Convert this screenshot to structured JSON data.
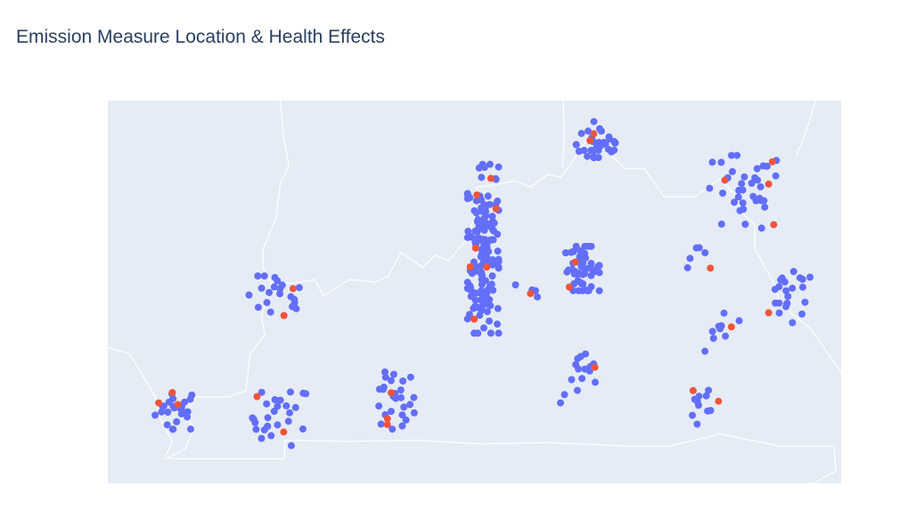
{
  "chart_data": {
    "type": "scatter",
    "title": "Emission Measure Location & Health Effects",
    "projection": "geo",
    "lon_range": [
      -90.1,
      -81.6
    ],
    "lat_range": [
      36.3,
      39.4
    ],
    "colors": {
      "background": "#e5ecf6",
      "border": "#ffffff",
      "series_a": "#636efa",
      "series_b": "#ef553b"
    },
    "boundaries": [
      [
        [
          -88.1,
          39.4
        ],
        [
          -88.06,
          39.1
        ],
        [
          -88.0,
          38.87
        ],
        [
          -88.1,
          38.73
        ],
        [
          -88.15,
          38.45
        ],
        [
          -88.3,
          38.2
        ],
        [
          -88.3,
          38.05
        ],
        [
          -88.2,
          37.92
        ],
        [
          -88.32,
          37.65
        ],
        [
          -88.28,
          37.5
        ],
        [
          -88.45,
          37.35
        ],
        [
          -88.5,
          37.05
        ],
        [
          -88.7,
          37.0
        ],
        [
          -89.08,
          37.0
        ],
        [
          -89.2,
          36.86
        ],
        [
          -89.1,
          36.75
        ],
        [
          -89.2,
          36.58
        ],
        [
          -89.42,
          36.5
        ]
      ],
      [
        [
          -88.2,
          37.93
        ],
        [
          -87.98,
          37.92
        ],
        [
          -87.7,
          37.95
        ],
        [
          -87.6,
          37.82
        ],
        [
          -87.3,
          37.95
        ],
        [
          -87.0,
          37.93
        ],
        [
          -86.85,
          37.98
        ],
        [
          -86.7,
          38.17
        ],
        [
          -86.45,
          38.05
        ],
        [
          -86.3,
          38.15
        ],
        [
          -86.15,
          38.1
        ],
        [
          -85.95,
          38.27
        ],
        [
          -85.85,
          38.45
        ],
        [
          -85.82,
          38.7
        ],
        [
          -85.6,
          38.72
        ],
        [
          -85.38,
          38.75
        ],
        [
          -85.2,
          38.7
        ],
        [
          -85.0,
          38.8
        ],
        [
          -84.85,
          38.78
        ],
        [
          -84.75,
          38.87
        ],
        [
          -84.55,
          39.08
        ],
        [
          -84.3,
          38.98
        ],
        [
          -84.1,
          38.85
        ],
        [
          -83.88,
          38.85
        ],
        [
          -83.65,
          38.62
        ],
        [
          -83.3,
          38.62
        ],
        [
          -83.0,
          38.77
        ],
        [
          -82.85,
          38.65
        ],
        [
          -82.72,
          38.47
        ],
        [
          -82.6,
          38.4
        ],
        [
          -82.6,
          38.2
        ],
        [
          -82.4,
          37.95
        ],
        [
          -82.3,
          37.75
        ],
        [
          -81.95,
          37.55
        ],
        [
          -81.6,
          37.2
        ]
      ],
      [
        [
          -84.82,
          39.4
        ],
        [
          -84.81,
          39.1
        ],
        [
          -84.83,
          38.85
        ]
      ],
      [
        [
          -90.1,
          37.4
        ],
        [
          -89.85,
          37.35
        ],
        [
          -89.7,
          37.18
        ],
        [
          -89.55,
          37.0
        ],
        [
          -89.5,
          36.84
        ],
        [
          -89.35,
          36.63
        ],
        [
          -89.45,
          36.5
        ]
      ],
      [
        [
          -89.42,
          36.5
        ],
        [
          -88.05,
          36.5
        ],
        [
          -88.05,
          36.65
        ],
        [
          -87.3,
          36.64
        ],
        [
          -86.5,
          36.65
        ],
        [
          -85.8,
          36.62
        ],
        [
          -85.0,
          36.63
        ],
        [
          -84.0,
          36.6
        ],
        [
          -83.6,
          36.6
        ],
        [
          -83.0,
          36.7
        ],
        [
          -82.3,
          36.6
        ],
        [
          -81.68,
          36.6
        ]
      ],
      [
        [
          -81.68,
          36.6
        ],
        [
          -81.66,
          36.4
        ],
        [
          -81.8,
          36.35
        ],
        [
          -81.92,
          36.3
        ]
      ],
      [
        [
          -81.92,
          36.3
        ],
        [
          -82.0,
          36.3
        ],
        [
          -82.02,
          36.2
        ]
      ],
      [
        [
          -81.9,
          39.4
        ],
        [
          -81.98,
          39.2
        ],
        [
          -82.12,
          38.95
        ]
      ]
    ],
    "clusters": [
      {
        "center": [
          -89.3,
          36.9
        ],
        "dx": 0.14,
        "dy": 0.09,
        "count": 24,
        "highlight": 3
      },
      {
        "center": [
          -88.1,
          36.84
        ],
        "dx": 0.18,
        "dy": 0.13,
        "count": 26,
        "highlight": 2
      },
      {
        "center": [
          -86.8,
          36.95
        ],
        "dx": 0.14,
        "dy": 0.14,
        "count": 26,
        "highlight": 3
      },
      {
        "center": [
          -88.15,
          37.8
        ],
        "dx": 0.18,
        "dy": 0.1,
        "count": 20,
        "highlight": 2
      },
      {
        "center": [
          -85.75,
          38.2
        ],
        "dx": 0.1,
        "dy": 0.38,
        "count": 150,
        "highlight": 7
      },
      {
        "center": [
          -85.22,
          37.82
        ],
        "dx": 0.1,
        "dy": 0.06,
        "count": 4,
        "highlight": 1
      },
      {
        "center": [
          -84.6,
          38.04
        ],
        "dx": 0.11,
        "dy": 0.1,
        "count": 50,
        "highlight": 2
      },
      {
        "center": [
          -84.6,
          37.15
        ],
        "dx": 0.14,
        "dy": 0.11,
        "count": 16,
        "highlight": 1
      },
      {
        "center": [
          -84.4,
          39.05
        ],
        "dx": 0.15,
        "dy": 0.1,
        "count": 36,
        "highlight": 2
      },
      {
        "center": [
          -82.75,
          38.65
        ],
        "dx": 0.25,
        "dy": 0.17,
        "count": 36,
        "highlight": 4
      },
      {
        "center": [
          -83.2,
          38.1
        ],
        "dx": 0.1,
        "dy": 0.06,
        "count": 5,
        "highlight": 1
      },
      {
        "center": [
          -82.2,
          37.8
        ],
        "dx": 0.16,
        "dy": 0.12,
        "count": 22,
        "highlight": 1
      },
      {
        "center": [
          -82.98,
          37.55
        ],
        "dx": 0.11,
        "dy": 0.1,
        "count": 9,
        "highlight": 1
      },
      {
        "center": [
          -83.15,
          36.95
        ],
        "dx": 0.11,
        "dy": 0.1,
        "count": 10,
        "highlight": 2
      }
    ]
  }
}
